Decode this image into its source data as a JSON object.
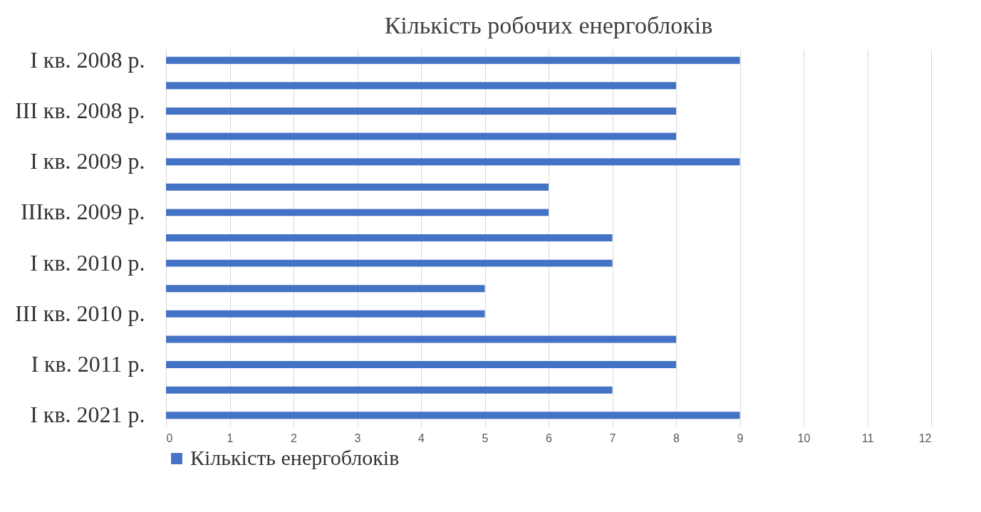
{
  "chart_data": {
    "type": "bar",
    "orientation": "horizontal",
    "title": "Кількість робочих енергоблоків",
    "categories": [
      "I кв. 2008 р.",
      null,
      "III кв. 2008 р.",
      null,
      "I кв. 2009 р.",
      null,
      "IIIкв. 2009 р.",
      null,
      "I кв. 2010 р.",
      null,
      "III кв. 2010 р.",
      null,
      "I кв. 2011 р.",
      null,
      "I кв. 2021 р."
    ],
    "series": [
      {
        "name": "Кількість енергоблоків",
        "color": "#4472c4",
        "values": [
          9,
          8,
          8,
          8,
          9,
          6,
          6,
          7,
          7,
          5,
          5,
          8,
          8,
          7,
          9
        ]
      }
    ],
    "xlim": [
      0,
      12
    ],
    "xticks": [
      0,
      1,
      2,
      3,
      4,
      5,
      6,
      7,
      8,
      9,
      10,
      11,
      12
    ],
    "grid": "x",
    "legend": "bottom"
  }
}
